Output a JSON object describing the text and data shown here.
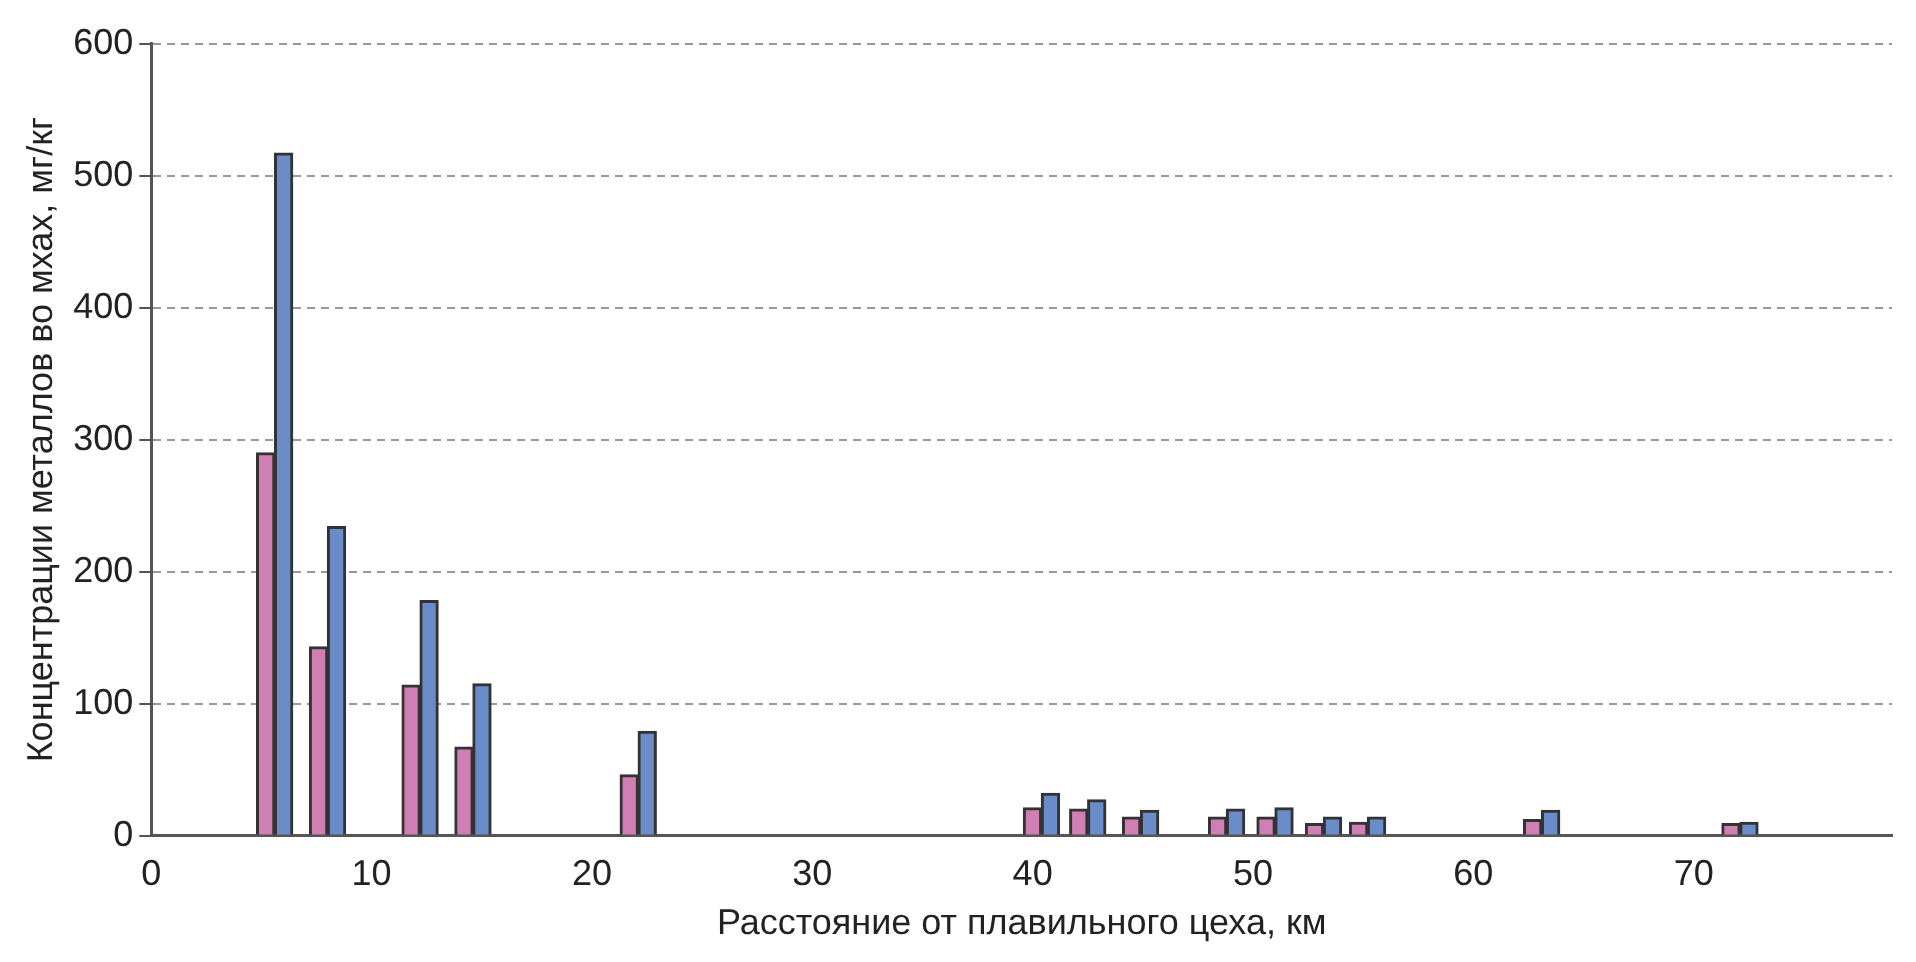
{
  "chart_data": {
    "type": "bar",
    "xlabel": "Расстояние от плавильного цеха, км",
    "ylabel": "Концентрации металлов во мхах, мг/кг",
    "x": [
      5.6,
      8.0,
      12.2,
      14.6,
      22.1,
      40.4,
      42.5,
      44.9,
      48.8,
      51.0,
      53.2,
      55.2,
      63.1,
      72.1
    ],
    "series": [
      {
        "color": "#d07fb5",
        "values": [
          290,
          143,
          114,
          67,
          46,
          21,
          20,
          14,
          14,
          14,
          9,
          10,
          12,
          9
        ]
      },
      {
        "color": "#6a8cc8",
        "values": [
          517,
          234,
          178,
          115,
          79,
          32,
          27,
          19,
          20,
          21,
          14,
          14,
          19,
          10
        ]
      }
    ],
    "xlim": [
      0,
      79
    ],
    "xticks": [
      0,
      10,
      20,
      30,
      40,
      50,
      60,
      70
    ],
    "ylim": [
      0,
      600
    ],
    "yticks": [
      0,
      100,
      200,
      300,
      400,
      500,
      600
    ],
    "grid": "y",
    "legend": false
  }
}
